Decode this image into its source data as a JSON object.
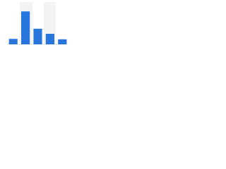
{
  "chart_data": {
    "type": "bar",
    "categories": [
      null,
      null,
      null,
      null,
      null
    ],
    "values": [
      13,
      78,
      37,
      25,
      12
    ],
    "color": "#2876dd",
    "ylim": [
      0,
      100
    ]
  }
}
